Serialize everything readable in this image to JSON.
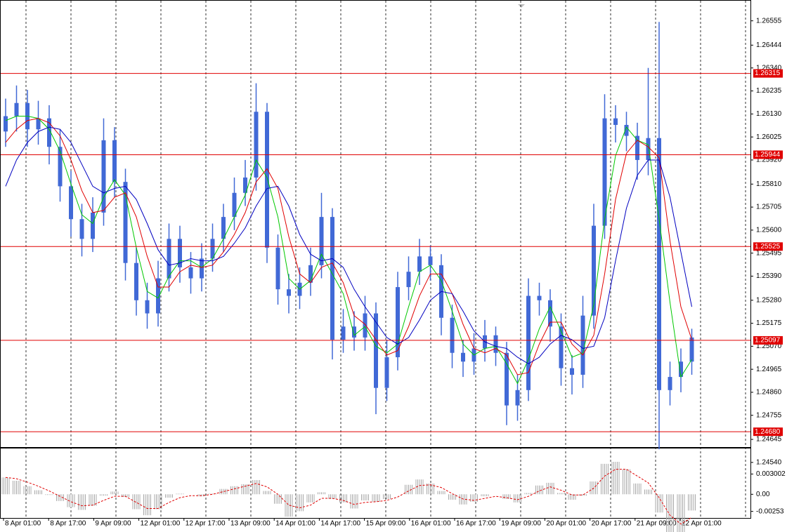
{
  "chart_data": [
    {
      "type": "candlestick",
      "ylim": [
        1.2461,
        1.2665
      ],
      "yticks": [
        1.26555,
        1.26444,
        {
          "value": 1.2634,
          "label": "1.26340"
        },
        1.26235,
        {
          "value": 1.2613,
          "label": "1.26130"
        },
        1.26025,
        {
          "value": 1.2592,
          "label": "1.25920"
        },
        {
          "value": 1.2581,
          "label": "1.25810"
        },
        1.25705,
        {
          "value": 1.256,
          "label": "1.25600"
        },
        1.25495,
        {
          "value": 1.2539,
          "label": "1.25390"
        },
        {
          "value": 1.2528,
          "label": "1.25280"
        },
        1.25175,
        {
          "value": 1.2507,
          "label": "1.25070"
        },
        1.24965,
        {
          "value": 1.2486,
          "label": "1.24860"
        },
        1.24755,
        1.24645,
        {
          "value": 1.2454,
          "label": "1.24540"
        }
      ],
      "grid": true,
      "x_labels": [
        "8 Apr 01:00",
        "8 Apr 17:00",
        "9 Apr 09:00",
        "12 Apr 01:00",
        "12 Apr 17:00",
        "13 Apr 09:00",
        "14 Apr 01:00",
        "14 Apr 17:00",
        "15 Apr 09:00",
        "16 Apr 01:00",
        "16 Apr 17:00",
        "19 Apr 09:00",
        "20 Apr 01:00",
        "20 Apr 17:00",
        "21 Apr 09:00",
        "22 Apr 01:00"
      ],
      "levels": {
        "color": "#e00000",
        "values": [
          1.26315,
          1.25944,
          1.25525,
          1.25097,
          {
            "value": 1.2468,
            "label": "1.24680"
          }
        ]
      },
      "candles": {
        "color": "#4169d6",
        "open": [
          1.2605,
          1.2612,
          1.2618,
          1.2606,
          1.2611,
          1.2598,
          1.258,
          1.2565,
          1.2556,
          1.2568,
          1.2601,
          1.2582,
          1.2545,
          1.2528,
          1.2522,
          1.2538,
          1.2556,
          1.2543,
          1.2538,
          1.2547,
          1.2556,
          1.2566,
          1.2577,
          1.2584,
          1.2614,
          1.2552,
          1.2533,
          1.253,
          1.2536,
          1.2544,
          1.2566,
          1.251,
          1.2516,
          1.2511,
          1.2522,
          1.2488,
          1.2502,
          1.2534,
          1.2541,
          1.2548,
          1.2544,
          1.252,
          1.2504,
          1.25,
          1.2506,
          1.2512,
          1.2504,
          1.248,
          1.2487,
          1.253,
          1.2528,
          1.2516,
          1.2497,
          1.2494,
          1.2521,
          1.2562,
          1.2611,
          1.2608,
          1.2603,
          1.2592,
          1.2602,
          1.2487,
          1.2493,
          1.25
        ],
        "high": [
          1.262,
          1.2626,
          1.2624,
          1.2619,
          1.2617,
          1.2606,
          1.2587,
          1.2572,
          1.2575,
          1.2611,
          1.2607,
          1.2588,
          1.2552,
          1.2536,
          1.2546,
          1.2563,
          1.2562,
          1.255,
          1.2554,
          1.2563,
          1.2572,
          1.2584,
          1.2592,
          1.2627,
          1.2618,
          1.2558,
          1.254,
          1.2543,
          1.2552,
          1.2577,
          1.257,
          1.2524,
          1.2523,
          1.253,
          1.2527,
          1.251,
          1.2541,
          1.2548,
          1.2556,
          1.2553,
          1.2549,
          1.2526,
          1.251,
          1.2513,
          1.2519,
          1.2516,
          1.2509,
          1.2494,
          1.2538,
          1.2536,
          1.2533,
          1.2522,
          1.2503,
          1.253,
          1.2572,
          1.2622,
          1.2617,
          1.2614,
          1.2609,
          1.2634,
          1.2655,
          1.25,
          1.2506,
          1.2515
        ],
        "low": [
          1.2598,
          1.2605,
          1.2598,
          1.2599,
          1.259,
          1.2573,
          1.2557,
          1.2548,
          1.255,
          1.2562,
          1.2575,
          1.2537,
          1.2521,
          1.2515,
          1.2516,
          1.2532,
          1.2536,
          1.2531,
          1.2532,
          1.2541,
          1.255,
          1.256,
          1.2571,
          1.2578,
          1.2545,
          1.2526,
          1.2522,
          1.2524,
          1.253,
          1.2538,
          1.2501,
          1.2504,
          1.2505,
          1.2505,
          1.2476,
          1.2482,
          1.2496,
          1.2528,
          1.2535,
          1.2537,
          1.2512,
          1.2497,
          1.2493,
          1.2494,
          1.25,
          1.2498,
          1.2471,
          1.2473,
          1.2482,
          1.2521,
          1.2509,
          1.2489,
          1.2485,
          1.2488,
          1.2515,
          1.2556,
          1.26,
          1.2596,
          1.2583,
          1.2585,
          1.246,
          1.248,
          1.2486,
          1.2494
        ],
        "close": [
          1.2612,
          1.2618,
          1.2606,
          1.2611,
          1.2598,
          1.258,
          1.2565,
          1.2556,
          1.2568,
          1.2601,
          1.2582,
          1.2545,
          1.2528,
          1.2522,
          1.2538,
          1.2556,
          1.2543,
          1.2538,
          1.2547,
          1.2556,
          1.2566,
          1.2577,
          1.2584,
          1.2614,
          1.2552,
          1.2533,
          1.253,
          1.2536,
          1.2544,
          1.2566,
          1.251,
          1.2516,
          1.2511,
          1.2522,
          1.2488,
          1.2502,
          1.2534,
          1.2541,
          1.2548,
          1.2544,
          1.252,
          1.2504,
          1.25,
          1.2506,
          1.2512,
          1.2504,
          1.248,
          1.2487,
          1.253,
          1.2528,
          1.2516,
          1.2497,
          1.2494,
          1.2521,
          1.2562,
          1.2611,
          1.2608,
          1.2603,
          1.2592,
          1.2602,
          1.2487,
          1.2493,
          1.25,
          1.2511
        ]
      },
      "lines": [
        {
          "color": "#00c800",
          "values": [
            1.261,
            1.2612,
            1.2612,
            1.2611,
            1.2606,
            1.2596,
            1.2581,
            1.2567,
            1.2563,
            1.2575,
            1.2583,
            1.2576,
            1.2552,
            1.2532,
            1.2529,
            1.2539,
            1.2546,
            1.2546,
            1.2543,
            1.2547,
            1.2556,
            1.2566,
            1.2576,
            1.2592,
            1.2584,
            1.2566,
            1.2538,
            1.2533,
            1.2537,
            1.2549,
            1.254,
            1.2531,
            1.2512,
            1.2516,
            1.2507,
            1.2504,
            1.2508,
            1.2525,
            1.2541,
            1.2544,
            1.2537,
            1.2523,
            1.2508,
            1.2503,
            1.2506,
            1.2507,
            1.2499,
            1.249,
            1.2501,
            1.2515,
            1.2525,
            1.2514,
            1.2502,
            1.2504,
            1.2526,
            1.2565,
            1.2594,
            1.2607,
            1.2601,
            1.2599,
            1.2565,
            1.2527,
            1.2493,
            1.2501
          ]
        },
        {
          "color": "#e00000",
          "values": [
            1.26,
            1.2606,
            1.261,
            1.2611,
            1.2609,
            1.2603,
            1.2592,
            1.2578,
            1.2568,
            1.2569,
            1.2575,
            1.2577,
            1.2566,
            1.2548,
            1.2534,
            1.2534,
            1.2541,
            1.2544,
            1.2543,
            1.2544,
            1.255,
            1.2558,
            1.2568,
            1.2582,
            1.2588,
            1.2579,
            1.2557,
            1.254,
            1.2536,
            1.2543,
            1.2545,
            1.2536,
            1.2521,
            1.2517,
            1.251,
            1.2503,
            1.2505,
            1.2516,
            1.253,
            1.254,
            1.254,
            1.2531,
            1.2517,
            1.2506,
            1.2504,
            1.2506,
            1.2503,
            1.2494,
            1.2495,
            1.2508,
            1.2518,
            1.2518,
            1.2508,
            1.2503,
            1.2512,
            1.254,
            1.2574,
            1.2595,
            1.2601,
            1.2598,
            1.2593,
            1.2555,
            1.2525,
            1.251
          ]
        },
        {
          "color": "#0000c0",
          "values": [
            1.258,
            1.2592,
            1.26,
            1.2605,
            1.2607,
            1.2606,
            1.26,
            1.259,
            1.258,
            1.2577,
            1.2579,
            1.258,
            1.2574,
            1.2563,
            1.2551,
            1.2544,
            1.2545,
            1.2547,
            1.2546,
            1.2546,
            1.2548,
            1.2554,
            1.2561,
            1.2571,
            1.2579,
            1.258,
            1.2571,
            1.2558,
            1.2549,
            1.2546,
            1.2547,
            1.2543,
            1.2533,
            1.2525,
            1.2518,
            1.2511,
            1.2508,
            1.2511,
            1.2519,
            1.2528,
            1.2532,
            1.2531,
            1.2523,
            1.2514,
            1.2509,
            1.2507,
            1.2506,
            1.2502,
            1.2499,
            1.2502,
            1.2508,
            1.2512,
            1.251,
            1.2506,
            1.2507,
            1.252,
            1.2546,
            1.257,
            1.2585,
            1.2592,
            1.2592,
            1.2575,
            1.255,
            1.2525
          ]
        }
      ]
    },
    {
      "type": "oscillator",
      "ylim": [
        -0.0035,
        0.00688
      ],
      "yticks": [
        0.003002,
        {
          "value": 0,
          "label": "0.00"
        },
        -0.00253
      ],
      "color": "#a8a8a8",
      "values": [
        0.0025,
        0.002,
        0.0012,
        0.0006,
        -0.0001,
        -0.001,
        -0.0019,
        -0.0023,
        -0.0017,
        -0.0002,
        0.0004,
        -0.0004,
        -0.0022,
        -0.0031,
        -0.0022,
        -0.0005,
        0.0001,
        0,
        -0.0003,
        0.0001,
        0.0008,
        0.0012,
        0.0015,
        0.0021,
        0.0005,
        -0.0014,
        -0.0033,
        -0.0025,
        -0.0012,
        0.0003,
        -0.0007,
        -0.0012,
        -0.0021,
        -0.0009,
        -0.0011,
        -0.0007,
        0,
        0.0014,
        0.0022,
        0.0016,
        0.0005,
        -0.0008,
        -0.0015,
        -0.0011,
        -0.0003,
        0,
        -0.0007,
        -0.0012,
        0.0002,
        0.0013,
        0.0017,
        0.0002,
        -0.0008,
        -0.0002,
        0.0019,
        0.0045,
        0.0048,
        0.0037,
        0.0016,
        0.0007,
        -0.0027,
        -0.0057,
        -0.0057,
        -0.0024
      ],
      "signal": {
        "color": "#e00000",
        "values": [
          0.0025,
          0.0023,
          0.0018,
          0.0012,
          0.0005,
          -0.0003,
          -0.0011,
          -0.0017,
          -0.0016,
          -0.0009,
          -0.0003,
          -0.0003,
          -0.0012,
          -0.0021,
          -0.0021,
          -0.0012,
          -0.0005,
          -0.0002,
          -0.0002,
          0,
          0.0004,
          0.0008,
          0.0012,
          0.0016,
          0.0011,
          0,
          -0.0016,
          -0.002,
          -0.0016,
          -0.0006,
          -0.0006,
          -0.0009,
          -0.0015,
          -0.0012,
          -0.0011,
          -0.0009,
          -0.0004,
          0.0005,
          0.0013,
          0.0014,
          0.001,
          0.0001,
          -0.0007,
          -0.0009,
          -0.0006,
          -0.0003,
          -0.0005,
          -0.0008,
          -0.0003,
          0.0005,
          0.0011,
          0.0006,
          -0.0001,
          -0.0001,
          0.0009,
          0.0027,
          0.0037,
          0.0037,
          0.0027,
          0.0017,
          -0.0005,
          -0.0031,
          -0.0044,
          -0.0034
        ]
      }
    }
  ]
}
